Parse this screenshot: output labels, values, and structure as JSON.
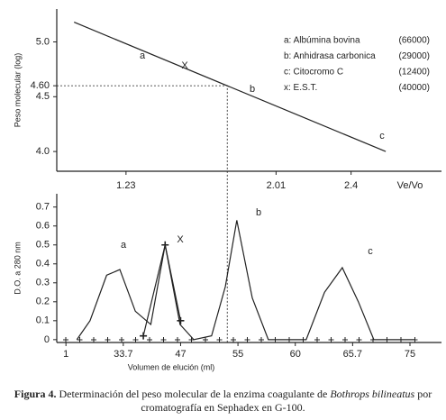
{
  "chart_data": [
    {
      "type": "line",
      "ylabel": "Peso molecular (log)",
      "xlabel": "Ve/Vo",
      "xlim": [
        0.87,
        2.87
      ],
      "xticks": [
        1.23,
        2.01,
        2.4
      ],
      "ylim": [
        3.82,
        5.3
      ],
      "yticks": [
        {
          "value": 4,
          "label": "4.0"
        },
        4.5,
        {
          "value": 4.6,
          "label": "4.60"
        },
        {
          "value": 5,
          "label": "5.0"
        }
      ],
      "series": [
        {
          "color": "#222222",
          "x": [
            0.96,
            2.58
          ],
          "values": [
            5.18,
            4.0
          ]
        }
      ],
      "guide_value": 4.6,
      "annotations": [
        "a",
        "X",
        "b",
        "c"
      ],
      "legend_entries": [
        {
          "label": "a: Albúmina bovina",
          "value": "(66000)"
        },
        {
          "label": "b: Anhidrasa carbonica",
          "value": "(29000)"
        },
        {
          "label": "c: Citocromo C",
          "value": "(12400)"
        },
        {
          "label": "x: E.S.T.",
          "value": "(40000)"
        }
      ]
    },
    {
      "type": "line",
      "ylabel": "D.O. a 280 nm",
      "xlabel": "Volumen de elución (ml)",
      "xlim": [
        -0.16,
        6.55
      ],
      "xticks": [
        {
          "value": 0,
          "label": "1"
        },
        {
          "value": 1,
          "label": "33.7"
        },
        {
          "value": 2,
          "label": "47"
        },
        {
          "value": 3,
          "label": "55"
        },
        {
          "value": 4,
          "label": "60"
        },
        {
          "value": 5,
          "label": "65.7"
        },
        {
          "value": 6,
          "label": "75"
        }
      ],
      "ylim": [
        -0.015,
        0.77
      ],
      "yticks": [
        0,
        0.1,
        0.2,
        0.3,
        0.4,
        0.5,
        0.6,
        0.7
      ],
      "series": [
        {
          "color": "#222222",
          "x": [
            0.19,
            0.42,
            0.71,
            0.94,
            1.21,
            1.48,
            1.73,
            1.99,
            2.23,
            2.54,
            2.78,
            2.98,
            3.25,
            3.53,
            4.19,
            4.51,
            4.82,
            5.1,
            5.37,
            6.08
          ],
          "values": [
            0,
            0.1,
            0.34,
            0.37,
            0.15,
            0.08,
            0.5,
            0.08,
            0,
            0.02,
            0.28,
            0.63,
            0.22,
            0,
            0,
            0.25,
            0.38,
            0.2,
            0,
            0
          ]
        },
        {
          "color": "#222222",
          "marker": "+",
          "x": [
            1.35,
            1.73,
            2.0
          ],
          "values": [
            0.02,
            0.5,
            0.1
          ]
        }
      ],
      "annotations": [
        "a",
        "X",
        "b",
        "c"
      ]
    }
  ],
  "caption": {
    "label": "Figura 4.",
    "text1": "Determinación del peso molecular de la enzima coagulante de",
    "species": "Bothrops bilineatus",
    "text2": "por cromatografía en Sephadex en G-100."
  }
}
